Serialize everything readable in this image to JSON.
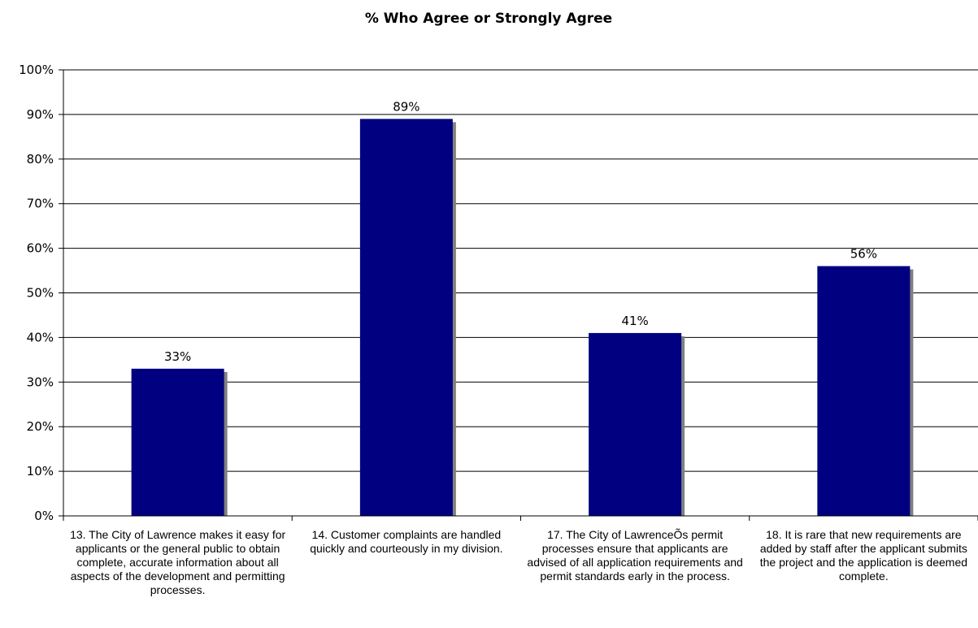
{
  "chart_data": {
    "type": "bar",
    "title": "% Who Agree or Strongly Agree",
    "categories": [
      "13. The City of Lawrence makes it easy for applicants or the general public to obtain complete, accurate information about all aspects of the development and permitting processes.",
      "14. Customer complaints are handled quickly and courteously in my division.",
      "17. The City of LawrenceÕs permit processes ensure that applicants are advised of all application requirements and permit standards early in the process.",
      "18. It is rare that new requirements are added by staff after the applicant submits the project and the application is deemed complete."
    ],
    "values": [
      33,
      89,
      41,
      56
    ],
    "value_labels": [
      "33%",
      "89%",
      "41%",
      "56%"
    ],
    "yticks": [
      "0%",
      "10%",
      "20%",
      "30%",
      "40%",
      "50%",
      "60%",
      "70%",
      "80%",
      "90%",
      "100%"
    ],
    "ylim": [
      0,
      100
    ],
    "grid": true,
    "legend": "none",
    "colors": {
      "bar": "#000080",
      "shadow": "#808080",
      "grid": "#000000"
    }
  }
}
